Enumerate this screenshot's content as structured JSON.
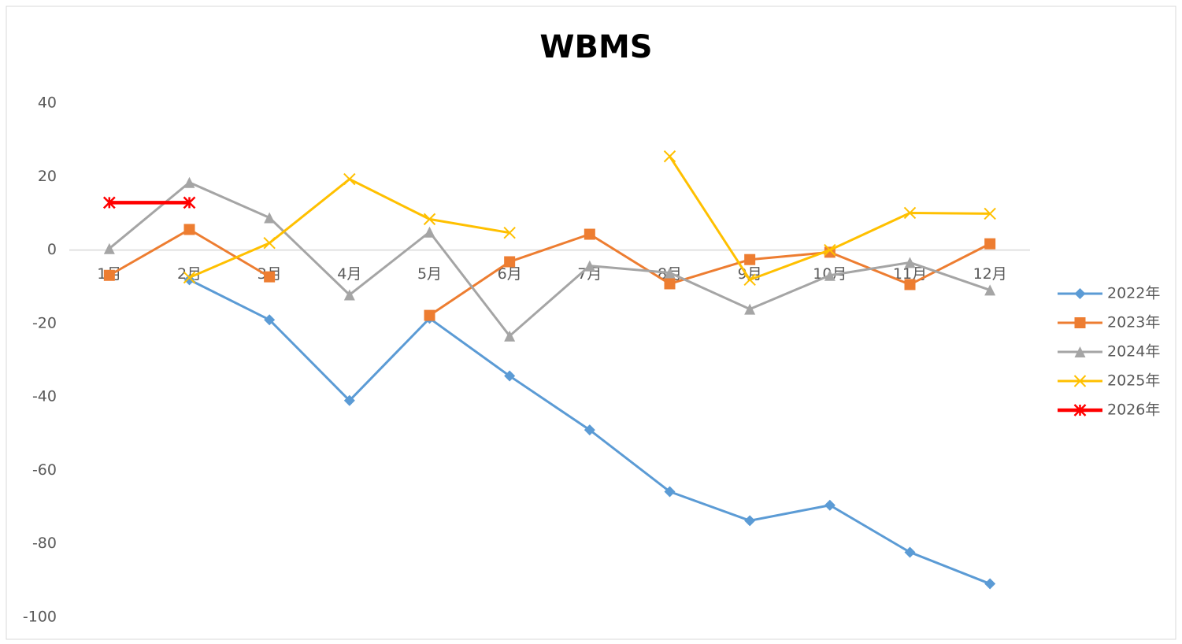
{
  "chart_data": {
    "type": "line",
    "title": "WBMS",
    "categories": [
      "1月",
      "2月",
      "3月",
      "4月",
      "5月",
      "6月",
      "7月",
      "8月",
      "9月",
      "10月",
      "11月",
      "12月"
    ],
    "series": [
      {
        "name": "2022年",
        "color": "#5b9bd5",
        "marker": "diamond",
        "values": [
          null,
          -8.1,
          -19,
          -41,
          -18.6,
          -34.3,
          -49,
          -65.8,
          -73.7,
          -69.5,
          -82.3,
          -90.9
        ]
      },
      {
        "name": "2023年",
        "color": "#ed7d31",
        "marker": "square",
        "values": [
          -6.9,
          5.6,
          -7.3,
          null,
          -17.8,
          -3.2,
          4.3,
          -9.2,
          -2.6,
          -0.6,
          -9.4,
          1.7
        ]
      },
      {
        "name": "2024年",
        "color": "#a5a5a5",
        "marker": "triangle",
        "values": [
          0.4,
          18.4,
          8.8,
          -12.2,
          4.9,
          -23.4,
          -4.3,
          -6.2,
          -16.1,
          -6.9,
          -3.4,
          -10.9
        ]
      },
      {
        "name": "2025年",
        "color": "#ffc000",
        "marker": "x",
        "values": [
          null,
          -7.5,
          1.9,
          19.3,
          8.4,
          4.7,
          null,
          25.5,
          -8.1,
          0,
          10.1,
          9.9
        ]
      },
      {
        "name": "2026年",
        "color": "#ff0000",
        "marker": "star",
        "values": [
          12.9,
          12.9,
          null,
          null,
          null,
          null,
          null,
          null,
          null,
          null,
          null,
          null
        ]
      }
    ],
    "ylim": [
      -100,
      40
    ],
    "yticks": [
      -100,
      -80,
      -60,
      -40,
      -20,
      0,
      20,
      40
    ],
    "grid": false,
    "legend": "right"
  }
}
